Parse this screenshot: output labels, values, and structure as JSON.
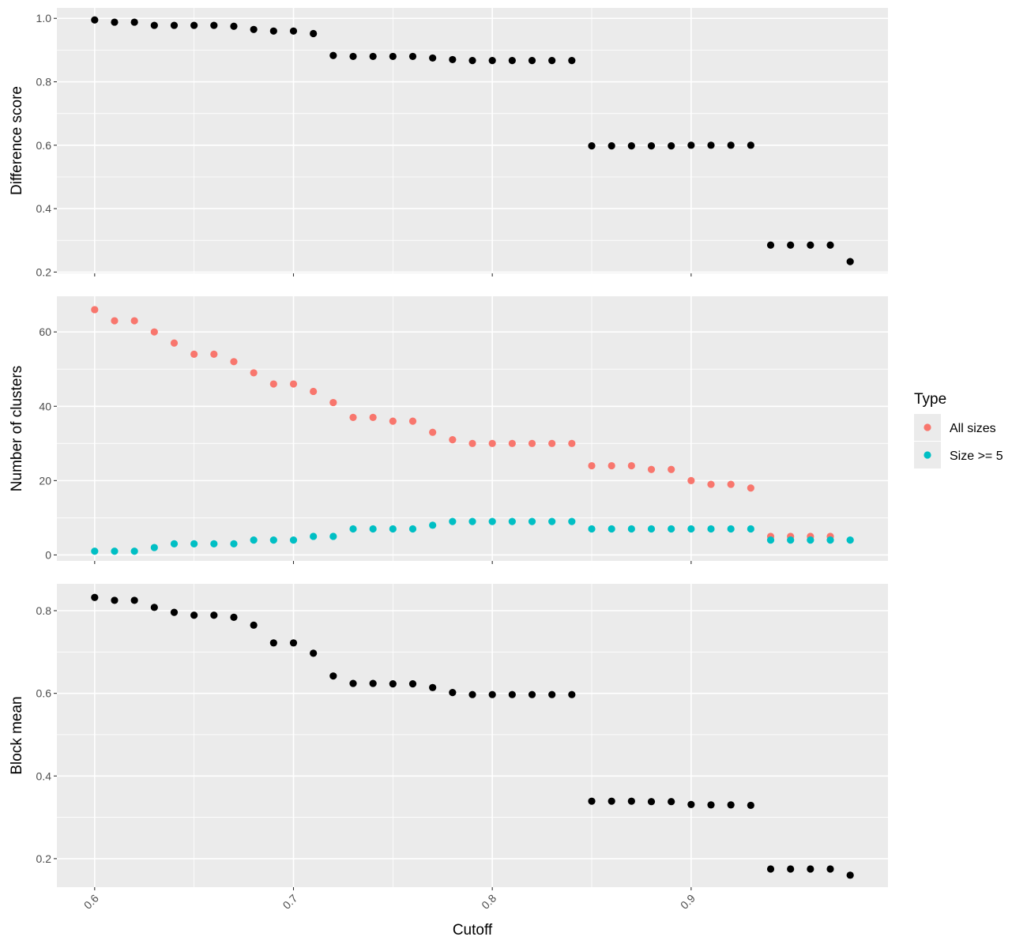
{
  "chart_data": {
    "type": "scatter",
    "x_axis": {
      "label": "Cutoff",
      "range": [
        0.581,
        0.999
      ],
      "ticks": [
        0.6,
        0.7,
        0.8,
        0.9
      ],
      "tick_labels": [
        "0.6",
        "0.7",
        "0.8",
        "0.9"
      ]
    },
    "x": [
      0.6,
      0.61,
      0.62,
      0.63,
      0.64,
      0.65,
      0.66,
      0.67,
      0.68,
      0.69,
      0.7,
      0.71,
      0.72,
      0.73,
      0.74,
      0.75,
      0.76,
      0.77,
      0.78,
      0.79,
      0.8,
      0.81,
      0.82,
      0.83,
      0.84,
      0.85,
      0.86,
      0.87,
      0.88,
      0.89,
      0.9,
      0.91,
      0.92,
      0.93,
      0.94,
      0.95,
      0.96,
      0.97,
      0.98
    ],
    "panels": [
      {
        "id": "difference",
        "ylabel": "Difference score",
        "ylim": [
          0.196,
          1.033
        ],
        "yticks": [
          0.2,
          0.4,
          0.6,
          0.8,
          1.0
        ],
        "ytick_labels": [
          "0.2",
          "0.4",
          "0.6",
          "0.8",
          "1.0"
        ],
        "series": [
          {
            "color": "#000000",
            "values": [
              0.995,
              0.988,
              0.988,
              0.978,
              0.978,
              0.978,
              0.978,
              0.975,
              0.965,
              0.96,
              0.96,
              0.952,
              0.883,
              0.88,
              0.88,
              0.88,
              0.88,
              0.875,
              0.87,
              0.867,
              0.867,
              0.867,
              0.867,
              0.867,
              0.867,
              0.598,
              0.598,
              0.598,
              0.598,
              0.598,
              0.6,
              0.6,
              0.6,
              0.6,
              0.285,
              0.285,
              0.285,
              0.285,
              0.233
            ]
          }
        ]
      },
      {
        "id": "clusters",
        "ylabel": "Number of clusters",
        "ylim": [
          -1.6,
          69.6
        ],
        "yticks": [
          0,
          20,
          40,
          60
        ],
        "ytick_labels": [
          "0",
          "20",
          "40",
          "60"
        ],
        "series": [
          {
            "name": "All sizes",
            "color": "#F8766D",
            "values": [
              66,
              63,
              63,
              60,
              57,
              54,
              54,
              52,
              49,
              46,
              46,
              44,
              41,
              37,
              37,
              36,
              36,
              33,
              31,
              30,
              30,
              30,
              30,
              30,
              30,
              24,
              24,
              24,
              23,
              23,
              20,
              19,
              19,
              18,
              5,
              5,
              5,
              5,
              null
            ]
          },
          {
            "name": "Size >= 5",
            "color": "#00BFC4",
            "values": [
              1,
              1,
              1,
              2,
              3,
              3,
              3,
              3,
              4,
              4,
              4,
              5,
              5,
              7,
              7,
              7,
              7,
              8,
              9,
              9,
              9,
              9,
              9,
              9,
              9,
              7,
              7,
              7,
              7,
              7,
              7,
              7,
              7,
              7,
              4,
              4,
              4,
              4,
              4
            ]
          }
        ]
      },
      {
        "id": "block",
        "ylabel": "Block mean",
        "ylim": [
          0.131,
          0.865
        ],
        "yticks": [
          0.2,
          0.4,
          0.6,
          0.8
        ],
        "ytick_labels": [
          "0.2",
          "0.4",
          "0.6",
          "0.8"
        ],
        "series": [
          {
            "color": "#000000",
            "values": [
              0.832,
              0.825,
              0.825,
              0.808,
              0.796,
              0.789,
              0.789,
              0.784,
              0.765,
              0.722,
              0.722,
              0.697,
              0.642,
              0.624,
              0.624,
              0.623,
              0.623,
              0.614,
              0.602,
              0.597,
              0.597,
              0.597,
              0.597,
              0.597,
              0.597,
              0.339,
              0.339,
              0.339,
              0.338,
              0.338,
              0.331,
              0.33,
              0.33,
              0.329,
              0.175,
              0.175,
              0.175,
              0.175,
              0.16
            ]
          }
        ]
      }
    ],
    "legend": {
      "title": "Type",
      "position": "right",
      "entries": [
        {
          "label": "All sizes",
          "color": "#F8766D"
        },
        {
          "label": "Size >= 5",
          "color": "#00BFC4"
        }
      ]
    },
    "grid": true,
    "panel_background": "#EBEBEB",
    "grid_color": "#FFFFFF"
  }
}
